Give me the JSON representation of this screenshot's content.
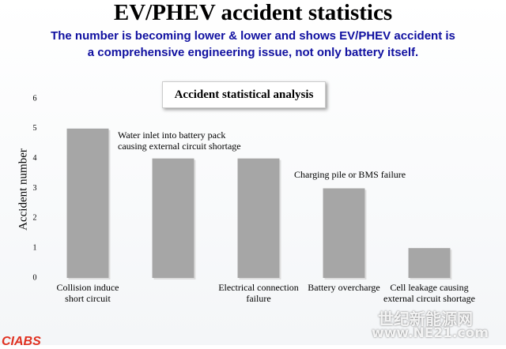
{
  "chart_data": {
    "type": "bar",
    "title": "EV/PHEV accident statistics",
    "subtitle": [
      "The number is becoming lower & lower and shows EV/PHEV accident is",
      "a comprehensive engineering issue, not only battery itself."
    ],
    "chart_title": "Accident statistical analysis",
    "y_label": "Accident number",
    "categories": [
      "Collision induce short circuit",
      "Water inlet into battery pack causing external circuit shortage",
      "Electrical connection failure",
      "Battery overcharge",
      "Cell leakage causing external circuit shortage"
    ],
    "values": [
      5,
      4,
      4,
      3,
      1
    ],
    "color": "#a6a6a6",
    "annotations": [
      "Charging pile or BMS failure"
    ],
    "ylim": [
      0,
      6
    ],
    "yticks": [
      0,
      1,
      2,
      3,
      4,
      5,
      6
    ],
    "grid": false,
    "watermark": [
      "世纪新能源网",
      "www.NE21.com"
    ],
    "logo": "CIABS"
  }
}
